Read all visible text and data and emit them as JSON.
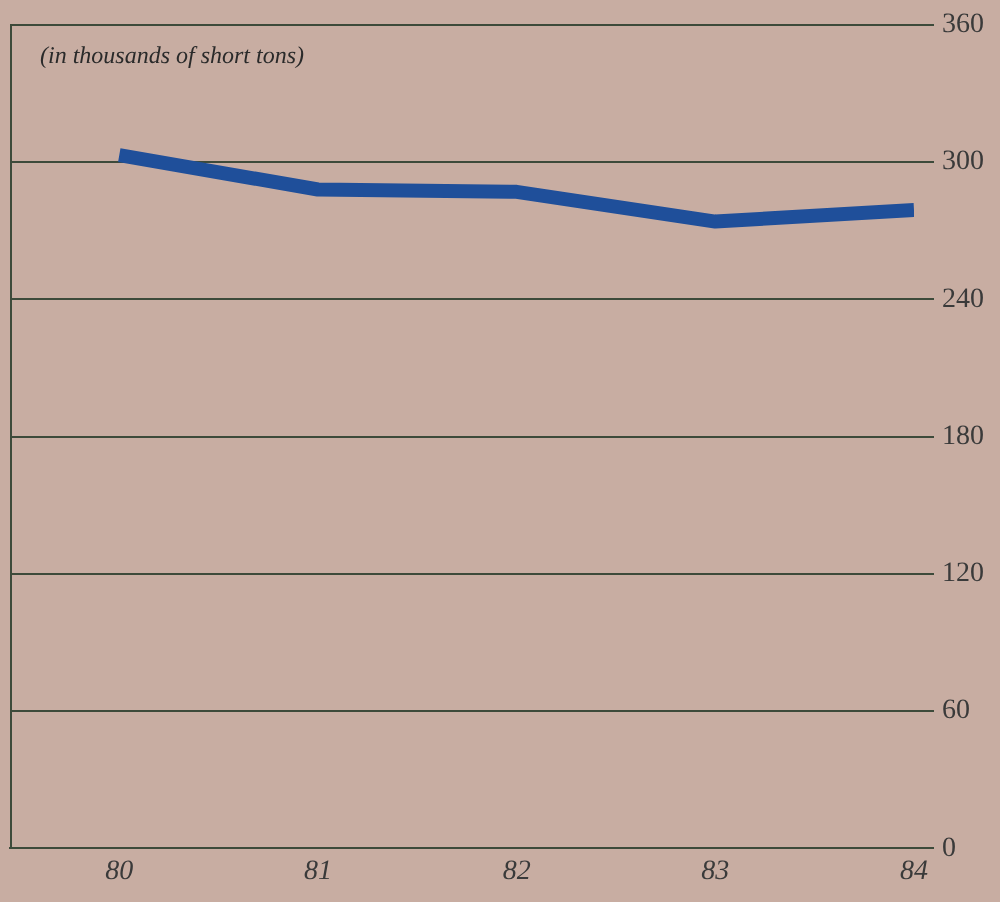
{
  "chart_data": {
    "type": "line",
    "ylabel": "(in thousands of short tons)",
    "x": [
      80,
      81,
      82,
      83,
      84
    ],
    "series": [
      {
        "color": "#1f4f9a",
        "values": [
          303,
          288,
          287,
          274,
          279
        ]
      }
    ],
    "xlim": [
      79.45,
      84
    ],
    "xticks": [
      80,
      81,
      82,
      83,
      84
    ],
    "ylim": [
      0,
      360
    ],
    "yticks": [
      0,
      60,
      120,
      180,
      240,
      300,
      360
    ],
    "grid": "y",
    "legend": false,
    "marker": "none",
    "line_style": "solid"
  }
}
